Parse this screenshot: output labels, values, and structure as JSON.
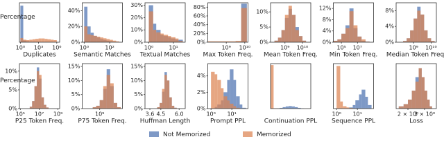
{
  "chart_data": [
    {
      "type": "histogram",
      "title": "Duplicates",
      "ylabel": "Percentage",
      "xscale": "log",
      "xlim": [
        0.7,
        3000000
      ],
      "ylim": [
        0,
        95
      ],
      "xticks": [
        {
          "value": 1,
          "label": "10⁰"
        },
        {
          "value": 1000,
          "label": "10³"
        },
        {
          "value": 1000000,
          "label": "10⁶"
        }
      ],
      "bins": [
        1,
        3,
        10,
        30,
        100,
        300,
        1000,
        3000,
        10000,
        30000,
        100000,
        300000,
        1000000
      ],
      "series": [
        {
          "name": "Not Memorized",
          "color": "#4c72b0",
          "values": [
            88,
            4,
            2,
            1,
            1,
            1,
            0.5,
            0.5,
            0.5,
            0.3,
            0.2,
            0.1
          ]
        },
        {
          "name": "Memorized",
          "color": "#dd8452",
          "values": [
            10,
            6,
            5,
            6,
            7,
            8,
            9,
            9,
            8,
            7,
            6,
            5
          ]
        }
      ]
    },
    {
      "type": "histogram",
      "title": "Semantic Matches",
      "xscale": "log",
      "xlim": [
        0.7,
        1000
      ],
      "ylim": [
        0,
        50
      ],
      "xticks": [
        {
          "value": 1,
          "label": "10⁰"
        },
        {
          "value": 100,
          "label": "10²"
        }
      ],
      "yticks": [
        {
          "value": 0,
          "label": "0%"
        },
        {
          "value": 20,
          "label": "20%"
        },
        {
          "value": 40,
          "label": "40%"
        }
      ],
      "bins": [
        1,
        1.8,
        3.2,
        5.6,
        10,
        18,
        32,
        56,
        100,
        180,
        320,
        560
      ],
      "series": [
        {
          "name": "Not Memorized",
          "color": "#4c72b0",
          "values": [
            45,
            20,
            12,
            8,
            6,
            4,
            3,
            2,
            1,
            0.5,
            0.3
          ]
        },
        {
          "name": "Memorized",
          "color": "#dd8452",
          "values": [
            20,
            10,
            9,
            8,
            7,
            6,
            5,
            4,
            3,
            2,
            1
          ]
        }
      ]
    },
    {
      "type": "histogram",
      "title": "Textual Matches",
      "xscale": "log",
      "xlim": [
        0.7,
        30
      ],
      "ylim": [
        0,
        32
      ],
      "xticks": [
        {
          "value": 1,
          "label": "10⁰"
        },
        {
          "value": 10,
          "label": "10¹"
        }
      ],
      "yticks": [
        {
          "value": 0,
          "label": "0%"
        },
        {
          "value": 10,
          "label": "10%"
        },
        {
          "value": 20,
          "label": "20%"
        },
        {
          "value": 30,
          "label": "30%"
        }
      ],
      "bins": [
        1,
        1.5,
        2,
        3,
        4,
        6,
        8,
        12,
        16,
        24
      ],
      "series": [
        {
          "name": "Not Memorized",
          "color": "#4c72b0",
          "values": [
            30,
            15,
            10,
            6,
            5,
            4,
            3,
            2,
            2
          ]
        },
        {
          "name": "Memorized",
          "color": "#dd8452",
          "values": [
            25,
            10,
            8,
            7,
            6,
            5,
            4,
            3,
            1
          ]
        }
      ]
    },
    {
      "type": "histogram",
      "title": "Max Token Freq.",
      "xscale": "log",
      "xlim": [
        100000000,
        15000000000
      ],
      "ylim": [
        0,
        90
      ],
      "xticks": [
        {
          "value": 1000000000,
          "label": "10⁹"
        },
        {
          "value": 10000000000,
          "label": "10¹⁰"
        }
      ],
      "yticks": [
        {
          "value": 0,
          "label": "0%"
        },
        {
          "value": 20,
          "label": "20%"
        },
        {
          "value": 40,
          "label": "40%"
        },
        {
          "value": 60,
          "label": "60%"
        },
        {
          "value": 80,
          "label": "80%"
        }
      ],
      "bins": [
        100000000,
        200000000,
        400000000,
        800000000,
        1600000000,
        3200000000,
        6400000000,
        13000000000
      ],
      "series": [
        {
          "name": "Not Memorized",
          "color": "#4c72b0",
          "values": [
            1,
            1,
            1,
            1,
            1,
            1,
            88
          ]
        },
        {
          "name": "Memorized",
          "color": "#dd8452",
          "values": [
            2,
            2,
            2,
            2,
            2,
            3,
            78
          ]
        }
      ]
    },
    {
      "type": "histogram",
      "title": "Mean Token Freq.",
      "xscale": "log",
      "xlim": [
        150000000,
        30000000000
      ],
      "ylim": [
        0,
        13
      ],
      "xticks": [
        {
          "value": 1000000000,
          "label": "10⁹"
        },
        {
          "value": 10000000000,
          "label": "10¹⁰"
        }
      ],
      "yticks": [
        {
          "value": 0,
          "label": "0%"
        },
        {
          "value": 5,
          "label": "5%"
        },
        {
          "value": 10,
          "label": "10%"
        }
      ],
      "bins": [
        250000000,
        400000000,
        630000000,
        1000000000,
        1600000000,
        2500000000,
        4000000000,
        6300000000,
        10000000000,
        16000000000
      ],
      "series": [
        {
          "name": "Not Memorized",
          "color": "#4c72b0",
          "values": [
            0.5,
            1.5,
            4,
            8,
            11,
            9,
            5,
            2,
            0.5
          ]
        },
        {
          "name": "Memorized",
          "color": "#dd8452",
          "values": [
            0.5,
            1.5,
            4,
            9,
            12,
            9,
            4,
            2,
            0.5
          ]
        }
      ]
    },
    {
      "type": "histogram",
      "title": "Min Token Freq.",
      "xscale": "log",
      "xlim": [
        10000,
        1000000000
      ],
      "ylim": [
        0,
        14
      ],
      "xticks": [
        {
          "value": 100000,
          "label": "10⁵"
        },
        {
          "value": 10000000,
          "label": "10⁷"
        }
      ],
      "yticks": [
        {
          "value": 0,
          "label": "0%"
        },
        {
          "value": 4,
          "label": "4%"
        },
        {
          "value": 8,
          "label": "8%"
        },
        {
          "value": 12,
          "label": "12%"
        }
      ],
      "bins": [
        10000,
        32000,
        100000,
        320000,
        1000000,
        3200000,
        10000000,
        32000000,
        100000000,
        320000000
      ],
      "series": [
        {
          "name": "Not Memorized",
          "color": "#4c72b0",
          "values": [
            0.5,
            1,
            3,
            6,
            12,
            5,
            2,
            0.5,
            0.2
          ]
        },
        {
          "name": "Memorized",
          "color": "#dd8452",
          "values": [
            0.5,
            1,
            3,
            5,
            11,
            6,
            2,
            1,
            0.2
          ]
        }
      ]
    },
    {
      "type": "histogram",
      "title": "Median Token Freq.",
      "xscale": "log",
      "xlim": [
        100000000,
        20000000000
      ],
      "ylim": [
        0,
        10
      ],
      "xticks": [
        {
          "value": 1000000000,
          "label": "10⁹"
        },
        {
          "value": 10000000000,
          "label": "10¹⁰"
        }
      ],
      "yticks": [
        {
          "value": 0,
          "label": "0%"
        },
        {
          "value": 4,
          "label": "4%"
        },
        {
          "value": 8,
          "label": "8%"
        }
      ],
      "bins": [
        250000000,
        400000000,
        630000000,
        1000000000,
        1600000000,
        2500000000,
        4000000000,
        6300000000,
        10000000000,
        16000000000
      ],
      "series": [
        {
          "name": "Not Memorized",
          "color": "#4c72b0",
          "values": [
            0.3,
            1,
            3,
            6,
            9,
            7,
            3,
            1,
            0.3
          ]
        },
        {
          "name": "Memorized",
          "color": "#dd8452",
          "values": [
            0.3,
            1,
            3,
            6,
            8,
            7,
            3,
            1,
            0.3
          ]
        }
      ]
    },
    {
      "type": "histogram",
      "title": "P25 Token Freq.",
      "ylabel": "Percentage",
      "xscale": "log",
      "xlim": [
        80000,
        1500000000
      ],
      "ylim": [
        0,
        12
      ],
      "xticks": [
        {
          "value": 100000,
          "label": "10⁵"
        },
        {
          "value": 10000000,
          "label": "10⁷"
        },
        {
          "value": 1000000000,
          "label": "10⁹"
        }
      ],
      "yticks": [
        {
          "value": 0,
          "label": "0%"
        },
        {
          "value": 5,
          "label": "5%"
        },
        {
          "value": 10,
          "label": "10%"
        }
      ],
      "bins": [
        1000000,
        1780000,
        3160000,
        5620000,
        10000000,
        17800000,
        31600000,
        56200000,
        100000000
      ],
      "series": [
        {
          "name": "Not Memorized",
          "color": "#4c72b0",
          "values": [
            0.5,
            2,
            6,
            11,
            8,
            3,
            1,
            0.3
          ]
        },
        {
          "name": "Memorized",
          "color": "#dd8452",
          "values": [
            0.5,
            2,
            6,
            10,
            9,
            3,
            1,
            0.3
          ]
        }
      ]
    },
    {
      "type": "histogram",
      "title": "P75 Token Freq.",
      "xscale": "log",
      "xlim": [
        100000000,
        20000000000
      ],
      "ylim": [
        0,
        16
      ],
      "xticks": [
        {
          "value": 1000000000,
          "label": "10⁹"
        }
      ],
      "yticks": [
        {
          "value": 0,
          "label": "0%"
        },
        {
          "value": 5,
          "label": "5%"
        },
        {
          "value": 10,
          "label": "10%"
        },
        {
          "value": 15,
          "label": "15%"
        }
      ],
      "bins": [
        400000000,
        630000000,
        1000000000,
        1600000000,
        2500000000,
        4000000000,
        6300000000,
        10000000000,
        16000000000
      ],
      "series": [
        {
          "name": "Not Memorized",
          "color": "#4c72b0",
          "values": [
            0.5,
            1,
            3,
            7,
            14,
            8,
            2,
            0.5
          ]
        },
        {
          "name": "Memorized",
          "color": "#dd8452",
          "values": [
            0.5,
            1,
            3,
            8,
            12,
            9,
            2,
            0.5
          ]
        }
      ]
    },
    {
      "type": "histogram",
      "title": "Huffman Length",
      "xlim": [
        3.2,
        6.5
      ],
      "ylim": [
        0,
        16
      ],
      "xticks": [
        3.6,
        4.5,
        {
          "value": 6,
          "label": "6.0"
        }
      ],
      "yticks": [
        {
          "value": 0,
          "label": "0%"
        },
        {
          "value": 5,
          "label": "5%"
        },
        {
          "value": 10,
          "label": "10%"
        },
        {
          "value": 15,
          "label": "15%"
        }
      ],
      "bins": [
        4.2,
        4.4,
        4.6,
        4.8,
        5,
        5.2,
        5.4,
        5.6,
        5.8
      ],
      "series": [
        {
          "name": "Not Memorized",
          "color": "#4c72b0",
          "values": [
            0.5,
            2,
            6,
            13,
            10,
            4,
            1,
            0.3
          ]
        },
        {
          "name": "Memorized",
          "color": "#dd8452",
          "values": [
            0.5,
            2,
            7,
            12,
            10,
            4,
            1,
            0.3
          ]
        }
      ]
    },
    {
      "type": "histogram",
      "title": "Prompt PPL",
      "xscale": "log",
      "xlim": [
        0.7,
        60
      ],
      "ylim": [
        0,
        5.5
      ],
      "xticks": [
        {
          "value": 1,
          "label": "10⁰"
        },
        {
          "value": 10,
          "label": "10¹"
        }
      ],
      "yticks": [
        {
          "value": 0,
          "label": "0%"
        },
        {
          "value": 2,
          "label": "2%"
        },
        {
          "value": 4,
          "label": "4%"
        }
      ],
      "bins": [
        1,
        1.5,
        2,
        3,
        4,
        6,
        8,
        12,
        16,
        24,
        32,
        48
      ],
      "series": [
        {
          "name": "Not Memorized",
          "color": "#4c72b0",
          "values": [
            0,
            0.2,
            0.5,
            1,
            2,
            3.5,
            4.8,
            3.5,
            1.5,
            0.5,
            0.1
          ]
        },
        {
          "name": "Memorized",
          "color": "#dd8452",
          "values": [
            4.5,
            4.2,
            3.5,
            2.5,
            1.5,
            1,
            0.6,
            0.3,
            0.1,
            0,
            0
          ]
        }
      ]
    },
    {
      "type": "histogram",
      "title": "Continuation PPL",
      "xscale": "log",
      "xlim": [
        1,
        10000
      ],
      "ylim": [
        0,
        62
      ],
      "bins": [
        1,
        2,
        4,
        8,
        16,
        32,
        64,
        128,
        256,
        512,
        1024,
        2048
      ],
      "series": [
        {
          "name": "Not Memorized",
          "color": "#4c72b0",
          "values": [
            0,
            0.2,
            0.5,
            1,
            2,
            3,
            3.5,
            3,
            2,
            1,
            0.3
          ]
        },
        {
          "name": "Memorized",
          "color": "#dd8452",
          "values": [
            60,
            0.5,
            0.2,
            0.1,
            0,
            0,
            0,
            0,
            0,
            0,
            0
          ]
        }
      ]
    },
    {
      "type": "histogram",
      "title": "Sequence PPL",
      "xscale": "log",
      "xlim": [
        0.7,
        60
      ],
      "ylim": [
        0,
        19
      ],
      "xticks": [
        {
          "value": 1,
          "label": "10⁰"
        },
        {
          "value": 10,
          "label": "10¹"
        }
      ],
      "bins": [
        1,
        1.5,
        2,
        3,
        4,
        6,
        8,
        12,
        16,
        24,
        32,
        48
      ],
      "series": [
        {
          "name": "Not Memorized",
          "color": "#4c72b0",
          "values": [
            0,
            0,
            0,
            0.1,
            0.5,
            1.5,
            3.5,
            6,
            8,
            5,
            1.5
          ]
        },
        {
          "name": "Memorized",
          "color": "#dd8452",
          "values": [
            18,
            3,
            1,
            0.5,
            0.3,
            0.1,
            0,
            0,
            0,
            0,
            0
          ]
        }
      ]
    },
    {
      "type": "histogram",
      "title": "Loss",
      "xscale": "log",
      "xlim": [
        1.5,
        4
      ],
      "ylim": [
        0,
        10
      ],
      "xticks": [
        {
          "value": 2,
          "label": "2 × 10⁰"
        },
        {
          "value": 3,
          "label": "3 × 10⁰"
        }
      ],
      "bins": [
        1.6,
        1.8,
        2,
        2.2,
        2.4,
        2.6,
        2.8,
        3,
        3.2,
        3.4,
        3.6
      ],
      "series": [
        {
          "name": "Not Memorized",
          "color": "#4c72b0",
          "values": [
            0.5,
            1,
            2,
            4,
            7,
            9,
            7,
            4,
            2,
            0.5
          ]
        },
        {
          "name": "Memorized",
          "color": "#dd8452",
          "values": [
            0.5,
            1,
            2,
            4,
            6,
            9,
            7,
            4,
            2,
            0.5
          ]
        }
      ]
    }
  ]
}
